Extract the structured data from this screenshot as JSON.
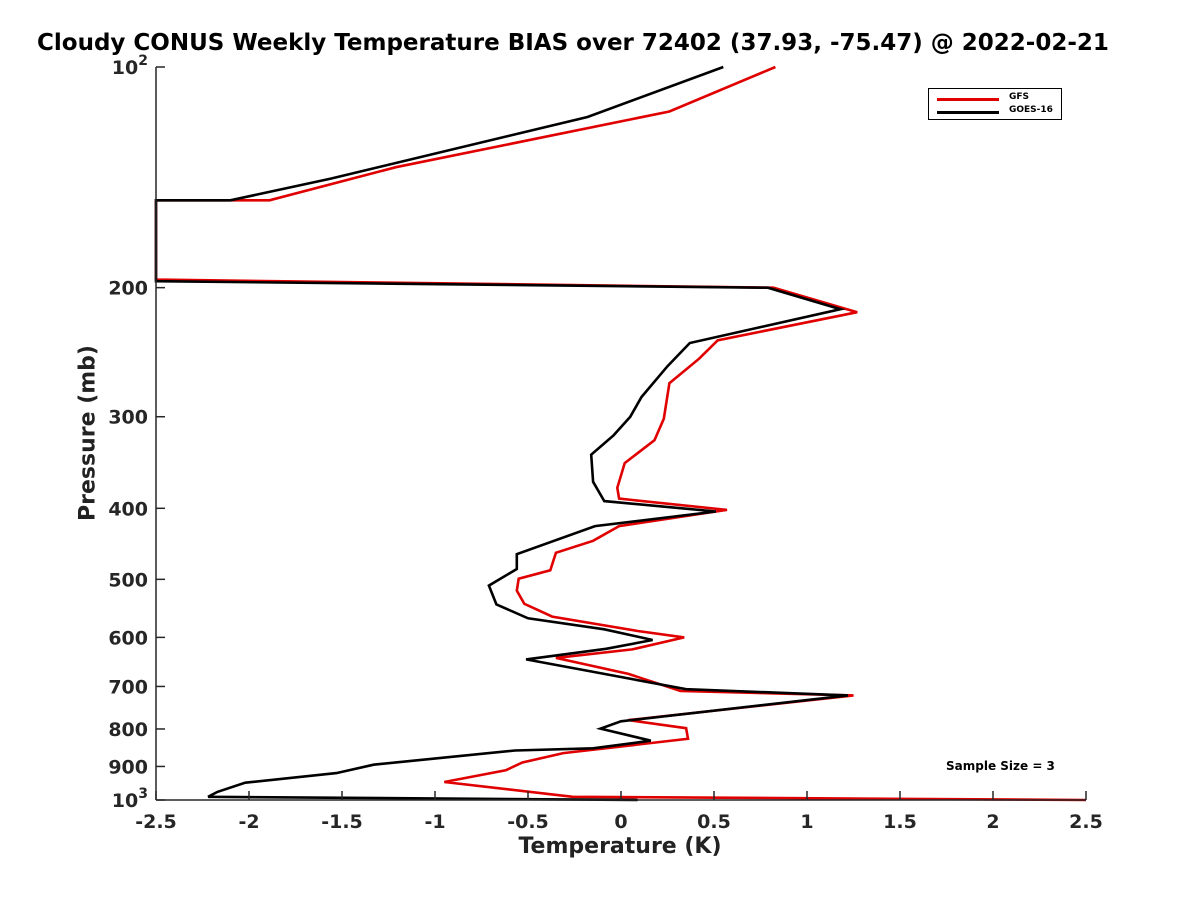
{
  "chart_data": {
    "type": "line",
    "title": "Cloudy CONUS Weekly Temperature BIAS over 72402 (37.93, -75.47) @ 2022-02-21",
    "xlabel": "Temperature (K)",
    "ylabel": "Pressure (mb)",
    "xlim": [
      -2.5,
      2.5
    ],
    "ylim": [
      100,
      1000
    ],
    "y_scale": "log",
    "y_reversed": true,
    "x_ticks": [
      "-2.5",
      "-2",
      "-1.5",
      "-1",
      "-0.5",
      "0",
      "0.5",
      "1",
      "1.5",
      "2",
      "2.5"
    ],
    "y_tick_values": [
      100,
      200,
      300,
      400,
      500,
      600,
      700,
      800,
      900,
      1000
    ],
    "y_tick_labels": [
      "10²",
      "200",
      "300",
      "400",
      "500",
      "600",
      "700",
      "800",
      "900",
      "10³"
    ],
    "grid": false,
    "legend_position": "top-right",
    "annotation": "Sample Size = 3",
    "series": [
      {
        "name": "GFS",
        "color": "#e00000",
        "points": [
          [
            0.83,
            100
          ],
          [
            0.26,
            115
          ],
          [
            -1.21,
            137
          ],
          [
            -1.89,
            152
          ],
          [
            -2.5,
            152
          ],
          [
            -2.5,
            195
          ],
          [
            0.82,
            200
          ],
          [
            1.27,
            216
          ],
          [
            0.52,
            236
          ],
          [
            0.42,
            250
          ],
          [
            0.26,
            270
          ],
          [
            0.23,
            302
          ],
          [
            0.18,
            323
          ],
          [
            0.02,
            347
          ],
          [
            -0.02,
            375
          ],
          [
            -0.01,
            388
          ],
          [
            0.57,
            402
          ],
          [
            -0.01,
            423
          ],
          [
            -0.15,
            443
          ],
          [
            -0.35,
            460
          ],
          [
            -0.38,
            486
          ],
          [
            -0.55,
            499
          ],
          [
            -0.56,
            518
          ],
          [
            -0.52,
            540
          ],
          [
            -0.37,
            562
          ],
          [
            0.09,
            588
          ],
          [
            0.34,
            600
          ],
          [
            0.06,
            623
          ],
          [
            -0.35,
            640
          ],
          [
            0.04,
            673
          ],
          [
            0.32,
            710
          ],
          [
            1.25,
            720
          ],
          [
            0.04,
            778
          ],
          [
            0.35,
            798
          ],
          [
            0.36,
            825
          ],
          [
            -0.31,
            863
          ],
          [
            -0.53,
            889
          ],
          [
            -0.62,
            911
          ],
          [
            -0.95,
            945
          ],
          [
            -0.26,
            990
          ],
          [
            2.5,
            1000
          ]
        ]
      },
      {
        "name": "GOES-16",
        "color": "#000000",
        "points": [
          [
            0.55,
            100
          ],
          [
            -0.18,
            117
          ],
          [
            -1.56,
            142
          ],
          [
            -2.1,
            152
          ],
          [
            -2.5,
            152
          ],
          [
            -2.5,
            196
          ],
          [
            0.79,
            200
          ],
          [
            1.18,
            214
          ],
          [
            0.37,
            238
          ],
          [
            0.25,
            256
          ],
          [
            0.11,
            282
          ],
          [
            0.05,
            300
          ],
          [
            -0.04,
            318
          ],
          [
            -0.16,
            338
          ],
          [
            -0.15,
            368
          ],
          [
            -0.09,
            391
          ],
          [
            0.51,
            404
          ],
          [
            -0.14,
            423
          ],
          [
            -0.56,
            462
          ],
          [
            -0.56,
            484
          ],
          [
            -0.71,
            510
          ],
          [
            -0.67,
            541
          ],
          [
            -0.5,
            565
          ],
          [
            -0.09,
            585
          ],
          [
            0.17,
            605
          ],
          [
            -0.08,
            622
          ],
          [
            -0.51,
            643
          ],
          [
            -0.17,
            667
          ],
          [
            0.35,
            706
          ],
          [
            1.22,
            720
          ],
          [
            0.0,
            781
          ],
          [
            -0.11,
            799
          ],
          [
            0.16,
            830
          ],
          [
            -0.15,
            850
          ],
          [
            -0.57,
            856
          ],
          [
            -1.33,
            895
          ],
          [
            -1.53,
            919
          ],
          [
            -2.02,
            947
          ],
          [
            -2.17,
            975
          ],
          [
            -2.22,
            990
          ],
          [
            0.09,
            1000
          ]
        ]
      }
    ]
  }
}
